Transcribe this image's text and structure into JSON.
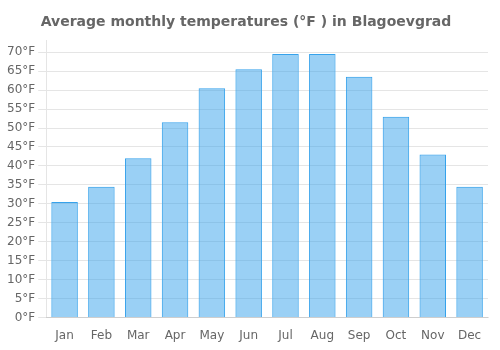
{
  "chart_data": {
    "type": "bar",
    "title": "Average monthly temperatures (°F ) in Blagoevgrad",
    "categories": [
      "Jan",
      "Feb",
      "Mar",
      "Apr",
      "May",
      "Jun",
      "Jul",
      "Aug",
      "Sep",
      "Oct",
      "Nov",
      "Dec"
    ],
    "values": [
      30.5,
      34.5,
      42.0,
      51.5,
      60.5,
      65.5,
      69.5,
      69.5,
      63.5,
      53.0,
      43.0,
      34.5
    ],
    "ylim": [
      0,
      73
    ],
    "yticks": [
      {
        "value": 0,
        "label": "0°F"
      },
      {
        "value": 5,
        "label": "5°F"
      },
      {
        "value": 10,
        "label": "10°F"
      },
      {
        "value": 15,
        "label": "15°F"
      },
      {
        "value": 20,
        "label": "20°F"
      },
      {
        "value": 25,
        "label": "25°F"
      },
      {
        "value": 30,
        "label": "30°F"
      },
      {
        "value": 35,
        "label": "35°F"
      },
      {
        "value": 40,
        "label": "40°F"
      },
      {
        "value": 45,
        "label": "45°F"
      },
      {
        "value": 50,
        "label": "50°F"
      },
      {
        "value": 55,
        "label": "55°F"
      },
      {
        "value": 60,
        "label": "60°F"
      },
      {
        "value": 65,
        "label": "65°F"
      },
      {
        "value": 70,
        "label": "70°F"
      }
    ],
    "grid": true
  }
}
